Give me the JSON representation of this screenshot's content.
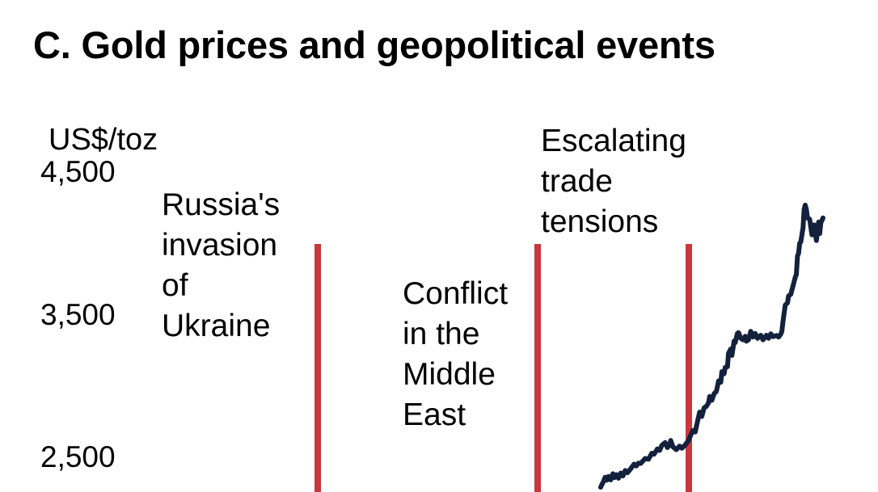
{
  "title": "C. Gold prices and geopolitical events",
  "chart_data": {
    "type": "line",
    "title": "C. Gold prices and geopolitical events",
    "ylabel": "US$/toz",
    "yticks": [
      {
        "value": 4500,
        "label": "4,500"
      },
      {
        "value": 3500,
        "label": "3,500"
      },
      {
        "value": 2500,
        "label": "2,500"
      }
    ],
    "ylim": [
      2300,
      4700
    ],
    "line_color": "#14213d",
    "event_color": "#c8373b",
    "events": [
      {
        "text": "Russia's\ninvasion\nof\nUkraine"
      },
      {
        "text": "Conflict\nin the\nMiddle\nEast"
      },
      {
        "text": "Escalating\ntrade\ntensions"
      }
    ],
    "series": [
      {
        "values": [
          [
            0,
            2300
          ],
          [
            0.005,
            2318
          ],
          [
            0.012,
            2338
          ],
          [
            0.02,
            2370
          ],
          [
            0.028,
            2350
          ],
          [
            0.035,
            2376
          ],
          [
            0.045,
            2352
          ],
          [
            0.055,
            2395
          ],
          [
            0.062,
            2368
          ],
          [
            0.07,
            2389
          ],
          [
            0.08,
            2364
          ],
          [
            0.09,
            2400
          ],
          [
            0.1,
            2380
          ],
          [
            0.11,
            2418
          ],
          [
            0.12,
            2402
          ],
          [
            0.135,
            2430
          ],
          [
            0.15,
            2463
          ],
          [
            0.16,
            2450
          ],
          [
            0.17,
            2470
          ],
          [
            0.18,
            2468
          ],
          [
            0.2,
            2503
          ],
          [
            0.215,
            2498
          ],
          [
            0.23,
            2540
          ],
          [
            0.24,
            2533
          ],
          [
            0.255,
            2570
          ],
          [
            0.265,
            2560
          ],
          [
            0.275,
            2595
          ],
          [
            0.29,
            2615
          ],
          [
            0.3,
            2580
          ],
          [
            0.31,
            2600
          ],
          [
            0.315,
            2630
          ],
          [
            0.325,
            2585
          ],
          [
            0.34,
            2565
          ],
          [
            0.355,
            2590
          ],
          [
            0.365,
            2575
          ],
          [
            0.38,
            2598
          ],
          [
            0.395,
            2630
          ],
          [
            0.405,
            2668
          ],
          [
            0.415,
            2700
          ],
          [
            0.425,
            2690
          ],
          [
            0.435,
            2760
          ],
          [
            0.445,
            2830
          ],
          [
            0.455,
            2800
          ],
          [
            0.465,
            2860
          ],
          [
            0.475,
            2870
          ],
          [
            0.485,
            2895
          ],
          [
            0.49,
            2940
          ],
          [
            0.5,
            2913
          ],
          [
            0.51,
            2960
          ],
          [
            0.52,
            2975
          ],
          [
            0.525,
            3010
          ],
          [
            0.53,
            3050
          ],
          [
            0.54,
            3040
          ],
          [
            0.545,
            3115
          ],
          [
            0.555,
            3100
          ],
          [
            0.56,
            3145
          ],
          [
            0.57,
            3150
          ],
          [
            0.575,
            3245
          ],
          [
            0.585,
            3275
          ],
          [
            0.59,
            3230
          ],
          [
            0.6,
            3330
          ],
          [
            0.605,
            3320
          ],
          [
            0.615,
            3385
          ],
          [
            0.62,
            3390
          ],
          [
            0.63,
            3350
          ],
          [
            0.64,
            3340
          ],
          [
            0.65,
            3365
          ],
          [
            0.655,
            3330
          ],
          [
            0.665,
            3340
          ],
          [
            0.675,
            3400
          ],
          [
            0.685,
            3360
          ],
          [
            0.695,
            3385
          ],
          [
            0.705,
            3350
          ],
          [
            0.72,
            3372
          ],
          [
            0.73,
            3340
          ],
          [
            0.745,
            3372
          ],
          [
            0.755,
            3350
          ],
          [
            0.765,
            3382
          ],
          [
            0.775,
            3362
          ],
          [
            0.79,
            3370
          ],
          [
            0.8,
            3360
          ],
          [
            0.81,
            3380
          ],
          [
            0.815,
            3400
          ],
          [
            0.82,
            3470
          ],
          [
            0.83,
            3585
          ],
          [
            0.84,
            3600
          ],
          [
            0.845,
            3650
          ],
          [
            0.855,
            3660
          ],
          [
            0.865,
            3720
          ],
          [
            0.875,
            3780
          ],
          [
            0.88,
            3800
          ],
          [
            0.885,
            3930
          ],
          [
            0.89,
            3950
          ],
          [
            0.895,
            4020
          ],
          [
            0.9,
            4030
          ],
          [
            0.905,
            4080
          ],
          [
            0.91,
            4130
          ],
          [
            0.915,
            4260
          ],
          [
            0.92,
            4290
          ],
          [
            0.925,
            4260
          ],
          [
            0.93,
            4200
          ],
          [
            0.94,
            4190
          ],
          [
            0.95,
            4080
          ],
          [
            0.96,
            4150
          ],
          [
            0.97,
            4040
          ],
          [
            0.975,
            4100
          ],
          [
            0.98,
            4170
          ],
          [
            0.985,
            4090
          ],
          [
            0.99,
            4165
          ],
          [
            1.0,
            4200
          ]
        ]
      }
    ]
  }
}
